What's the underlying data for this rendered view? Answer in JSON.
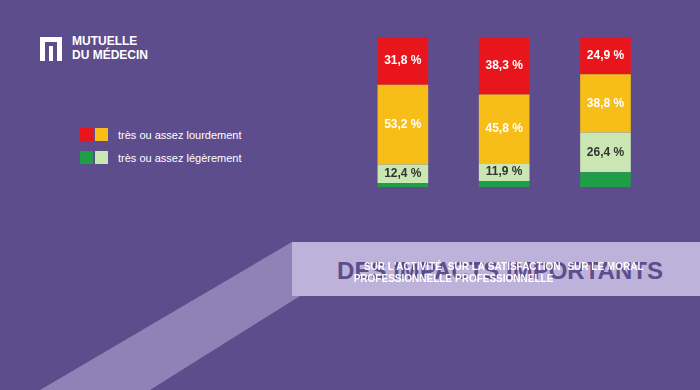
{
  "logo": [
    "MUTUELLE",
    "DU MÉDECIN"
  ],
  "banner": "DES IMPACTS IMPORTANTS",
  "chart_data": {
    "type": "bar",
    "categories": [
      [
        "SUR L'ACTIVITÉ",
        "PROFESSIONNELLE"
      ],
      [
        "SUR LA SATISFACTION",
        "PROFESSIONNELLE"
      ],
      [
        "SUR LE MORAL"
      ]
    ],
    "series": [
      {
        "color": "#1f9e48",
        "values": [
          2.6,
          4.0,
          9.9
        ],
        "value_labels": [
          null,
          null,
          null
        ]
      },
      {
        "color": "#c9e6b3",
        "values": [
          12.4,
          11.9,
          26.4
        ],
        "value_labels": [
          "12,4 %",
          "11,9 %",
          "26,4 %"
        ]
      },
      {
        "color": "#f7bd18",
        "values": [
          53.2,
          45.8,
          38.8
        ],
        "value_labels": [
          "53,2 %",
          "45,8 %",
          "38,8 %"
        ]
      },
      {
        "color": "#e8161c",
        "values": [
          31.8,
          38.3,
          24.9
        ],
        "value_labels": [
          "31,8 %",
          "38,3 %",
          "24,9 %"
        ]
      }
    ],
    "legend_entries": [
      {
        "label": "très ou assez lourdement",
        "colors": [
          "#e8161c",
          "#f7bd18"
        ]
      },
      {
        "label": "très ou assez légèrement",
        "colors": [
          "#1f9e48",
          "#c9e6b3"
        ]
      }
    ],
    "ylim": [
      0,
      100
    ],
    "stacked": true,
    "data_labels": true,
    "tick_labels": "x",
    "grid": false
  }
}
